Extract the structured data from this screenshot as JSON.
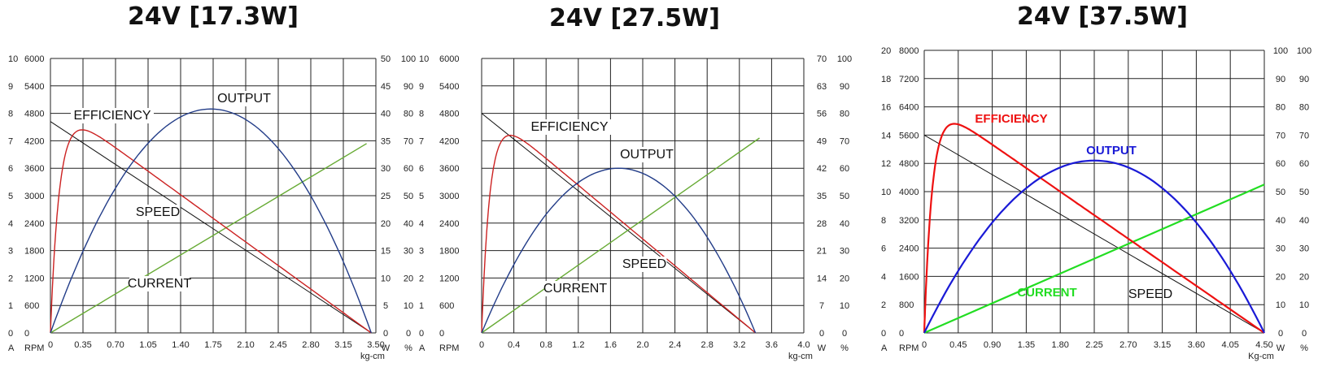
{
  "chart_data": [
    {
      "type": "line",
      "title": "24V [17.3W]",
      "xlabel": "kg-cm",
      "x_unit": "",
      "x_ticks": [
        "0",
        "0.35",
        "0.70",
        "1.05",
        "1.40",
        "1.75",
        "2.10",
        "2.45",
        "2.80",
        "3.15",
        "3.50"
      ],
      "xlim": [
        0,
        3.5
      ],
      "x_grid_lines": 10,
      "y_grid_lines": 10,
      "grid": true,
      "left_axes": [
        {
          "unit": "A",
          "ticks": [
            "0",
            "1",
            "2",
            "3",
            "4",
            "5",
            "6",
            "7",
            "8",
            "9",
            "10"
          ]
        },
        {
          "unit": "RPM",
          "ticks": [
            "0",
            "600",
            "1200",
            "1800",
            "2400",
            "3000",
            "3600",
            "4200",
            "4800",
            "5400",
            "6000"
          ]
        }
      ],
      "right_axes": [
        {
          "unit": "W",
          "ticks": [
            "0",
            "5",
            "10",
            "15",
            "20",
            "25",
            "30",
            "35",
            "40",
            "45",
            "50"
          ]
        },
        {
          "unit": "%",
          "ticks": [
            "0",
            "10",
            "20",
            "30",
            "40",
            "50",
            "60",
            "70",
            "80",
            "90",
            "100"
          ]
        }
      ],
      "colors": {
        "speed": "#111111",
        "current": "#66aa33",
        "efficiency": "#cc2222",
        "output": "#223c88"
      },
      "labels": {
        "speed": "SPEED",
        "current": "CURRENT",
        "efficiency": "EFFICIENCY",
        "output": "OUTPUT"
      },
      "label_style": "boxed",
      "series": [
        {
          "name": "SPEED",
          "key": "speed",
          "axis": "RPM",
          "x": [
            0,
            3.45
          ],
          "y": [
            4620,
            0
          ]
        },
        {
          "name": "CURRENT",
          "key": "current",
          "axis": "A",
          "x": [
            0,
            3.4
          ],
          "y": [
            0,
            6.9
          ]
        },
        {
          "name": "EFFICIENCY",
          "key": "efficiency",
          "axis": "%",
          "shape": "efficiency",
          "stall": 3.45,
          "peak": {
            "x": 0.45,
            "y": 74
          }
        },
        {
          "name": "OUTPUT",
          "key": "output",
          "axis": "W",
          "shape": "parabola",
          "stall": 3.45,
          "peak": {
            "x": 1.7,
            "y": 40.8
          }
        }
      ]
    },
    {
      "type": "line",
      "title": "24V [27.5W]",
      "xlabel": "kg-cm",
      "x_unit": "",
      "x_ticks": [
        "0",
        "0.4",
        "0.8",
        "1.2",
        "1.6",
        "2.0",
        "2.4",
        "2.8",
        "3.2",
        "3.6",
        "4.0"
      ],
      "xlim": [
        0,
        4.0
      ],
      "x_grid_lines": 10,
      "y_grid_lines": 10,
      "grid": true,
      "left_axes": [
        {
          "unit": "A",
          "ticks": [
            "0",
            "1",
            "2",
            "3",
            "4",
            "5",
            "6",
            "7",
            "8",
            "9",
            "10"
          ]
        },
        {
          "unit": "RPM",
          "ticks": [
            "0",
            "600",
            "1200",
            "1800",
            "2400",
            "3000",
            "3600",
            "4200",
            "4800",
            "5400",
            "6000"
          ]
        }
      ],
      "right_axes": [
        {
          "unit": "W",
          "ticks": [
            "0",
            "7",
            "14",
            "21",
            "28",
            "35",
            "42",
            "49",
            "56",
            "63",
            "70"
          ]
        },
        {
          "unit": "%",
          "ticks": [
            "0",
            "10",
            "20",
            "30",
            "40",
            "50",
            "60",
            "70",
            "80",
            "90",
            "100"
          ]
        }
      ],
      "colors": {
        "speed": "#111111",
        "current": "#66aa33",
        "efficiency": "#cc2222",
        "output": "#223c88"
      },
      "labels": {
        "speed": "SPEED",
        "current": "CURRENT",
        "efficiency": "EFFICIENCY",
        "output": "OUTPUT"
      },
      "label_style": "boxed",
      "series": [
        {
          "name": "SPEED",
          "key": "speed",
          "axis": "RPM",
          "x": [
            0,
            3.4
          ],
          "y": [
            4800,
            0
          ]
        },
        {
          "name": "CURRENT",
          "key": "current",
          "axis": "A",
          "x": [
            0,
            3.45
          ],
          "y": [
            0,
            7.1
          ]
        },
        {
          "name": "EFFICIENCY",
          "key": "efficiency",
          "axis": "%",
          "shape": "efficiency",
          "stall": 3.4,
          "peak": {
            "x": 0.48,
            "y": 72
          }
        },
        {
          "name": "OUTPUT",
          "key": "output",
          "axis": "W",
          "shape": "parabola",
          "stall": 3.4,
          "peak": {
            "x": 1.72,
            "y": 42
          }
        }
      ]
    },
    {
      "type": "line",
      "title": "24V [37.5W]",
      "xlabel": "Kg-cm",
      "x_unit": "",
      "x_ticks": [
        "0",
        "0.45",
        "0.90",
        "1.35",
        "1.80",
        "2.25",
        "2.70",
        "3.15",
        "3.60",
        "4.05",
        "4.50"
      ],
      "xlim": [
        0,
        4.5
      ],
      "x_grid_lines": 10,
      "y_grid_lines": 10,
      "grid": true,
      "left_axes": [
        {
          "unit": "A",
          "ticks": [
            "0",
            "2",
            "4",
            "6",
            "8",
            "10",
            "12",
            "14",
            "16",
            "18",
            "20"
          ]
        },
        {
          "unit": "RPM",
          "ticks": [
            "0",
            "800",
            "1600",
            "2400",
            "3200",
            "4000",
            "4800",
            "5600",
            "6400",
            "7200",
            "8000"
          ]
        }
      ],
      "right_axes": [
        {
          "unit": "W",
          "ticks": [
            "0",
            "10",
            "20",
            "30",
            "40",
            "50",
            "60",
            "70",
            "80",
            "90",
            "100"
          ]
        },
        {
          "unit": "%",
          "ticks": [
            "0",
            "10",
            "20",
            "30",
            "40",
            "50",
            "60",
            "70",
            "80",
            "90",
            "100"
          ]
        }
      ],
      "colors": {
        "speed": "#111111",
        "current": "#22dd22",
        "efficiency": "#ee1111",
        "output": "#1a1ad6"
      },
      "labels": {
        "speed": "SPEED",
        "current": "CURRENT",
        "efficiency": "EFFICIENCY",
        "output": "OUTPUT"
      },
      "label_style": "colored",
      "series": [
        {
          "name": "SPEED",
          "key": "speed",
          "axis": "RPM",
          "x": [
            0,
            4.5
          ],
          "y": [
            5600,
            0
          ]
        },
        {
          "name": "CURRENT",
          "key": "current",
          "axis": "A",
          "x": [
            0,
            4.5
          ],
          "y": [
            0,
            10.5
          ]
        },
        {
          "name": "EFFICIENCY",
          "key": "efficiency",
          "axis": "%",
          "shape": "efficiency",
          "stall": 4.5,
          "peak": {
            "x": 0.5,
            "y": 74
          }
        },
        {
          "name": "OUTPUT",
          "key": "output",
          "axis": "W",
          "shape": "parabola",
          "stall": 4.5,
          "peak": {
            "x": 2.25,
            "y": 61
          }
        }
      ]
    }
  ]
}
